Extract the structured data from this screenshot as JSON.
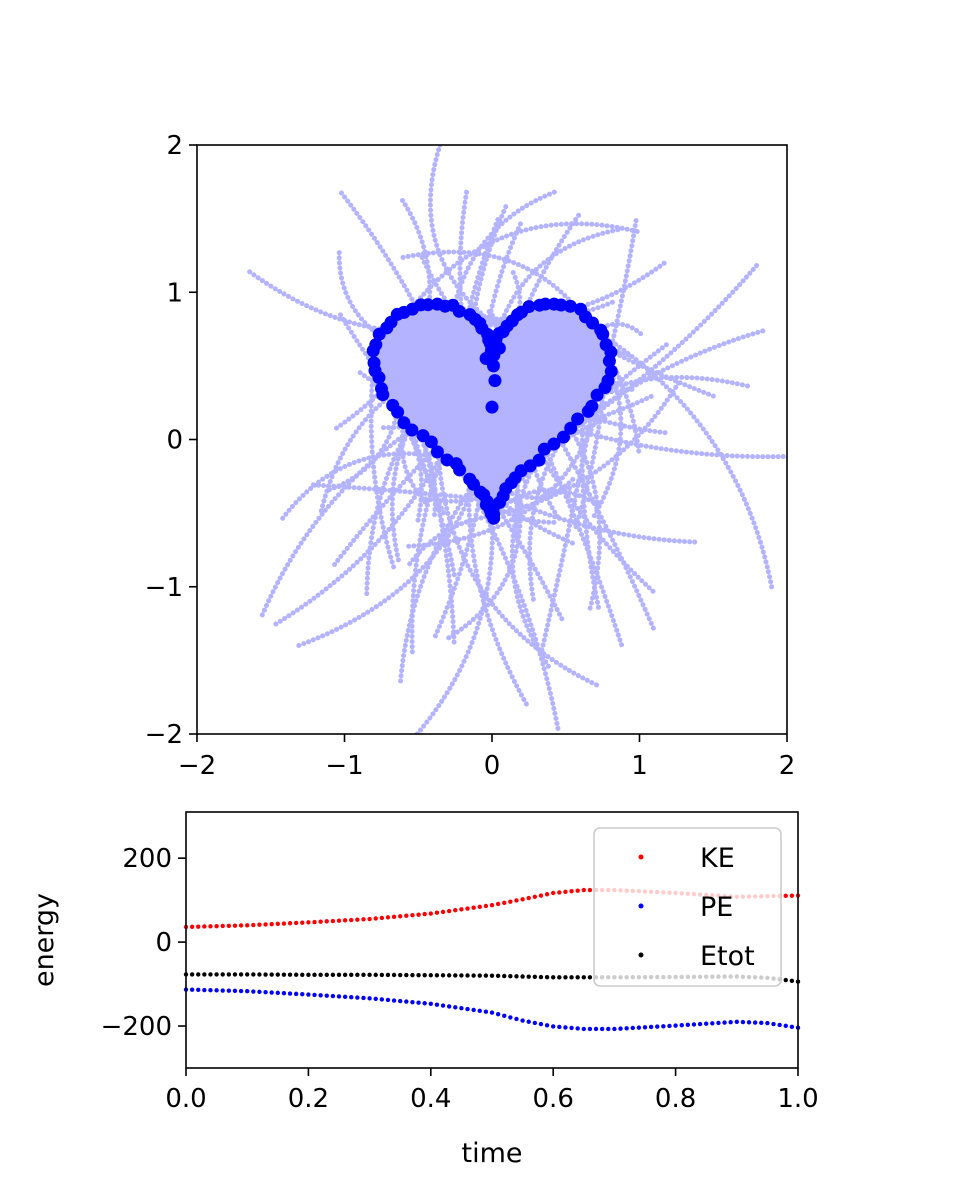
{
  "chart_data": [
    {
      "type": "scatter",
      "title": "",
      "xlabel": "",
      "ylabel": "",
      "xlim": [
        -2,
        2
      ],
      "ylim": [
        -2,
        2
      ],
      "xticks": [
        -2,
        -1,
        0,
        1,
        2
      ],
      "yticks": [
        -2,
        -1,
        0,
        1,
        2
      ],
      "xtick_labels": [
        "−2",
        "−1",
        "0",
        "1",
        "2"
      ],
      "ytick_labels": [
        "−2",
        "−1",
        "0",
        "1",
        "2"
      ],
      "grid": false,
      "legend": "none",
      "trail_color": "#b3b3ff",
      "point_color": "#0000ff",
      "trail_count": 100,
      "points_on_heart_curve": 100,
      "extra_points": [
        [
          0.0,
          0.66
        ],
        [
          -0.04,
          0.55
        ],
        [
          0.05,
          0.62
        ],
        [
          0.01,
          0.5
        ],
        [
          0.02,
          0.4
        ],
        [
          0.0,
          0.22
        ]
      ]
    },
    {
      "type": "scatter",
      "title": "",
      "xlabel": "time",
      "ylabel": "energy",
      "xlim": [
        0,
        1
      ],
      "ylim": [
        -300,
        310
      ],
      "xticks": [
        0,
        0.2,
        0.4,
        0.6,
        0.8,
        1.0
      ],
      "yticks": [
        -200,
        0,
        200
      ],
      "xtick_labels": [
        "0.0",
        "0.2",
        "0.4",
        "0.6",
        "0.8",
        "1.0"
      ],
      "ytick_labels": [
        "−200",
        "0",
        "200"
      ],
      "grid": false,
      "legend": "upper right",
      "series": [
        {
          "name": "KE",
          "color": "#ff0000",
          "x": [
            0.0,
            0.1,
            0.2,
            0.3,
            0.4,
            0.5,
            0.55,
            0.6,
            0.65,
            0.7,
            0.8,
            0.9,
            1.0
          ],
          "values": [
            36,
            40,
            47,
            55,
            68,
            88,
            102,
            117,
            124,
            124,
            117,
            108,
            111
          ]
        },
        {
          "name": "PE",
          "color": "#0000ff",
          "x": [
            0.0,
            0.1,
            0.2,
            0.3,
            0.4,
            0.5,
            0.55,
            0.6,
            0.65,
            0.7,
            0.8,
            0.9,
            0.95,
            1.0
          ],
          "values": [
            -113,
            -117,
            -125,
            -134,
            -147,
            -168,
            -187,
            -201,
            -207,
            -207,
            -199,
            -190,
            -193,
            -204
          ]
        },
        {
          "name": "Etot",
          "color": "#000000",
          "x": [
            0.0,
            0.1,
            0.2,
            0.3,
            0.4,
            0.5,
            0.6,
            0.7,
            0.8,
            0.9,
            0.95,
            1.0
          ],
          "values": [
            -77,
            -77,
            -78,
            -78,
            -79,
            -80,
            -84,
            -84,
            -83,
            -82,
            -85,
            -94
          ]
        }
      ]
    }
  ]
}
